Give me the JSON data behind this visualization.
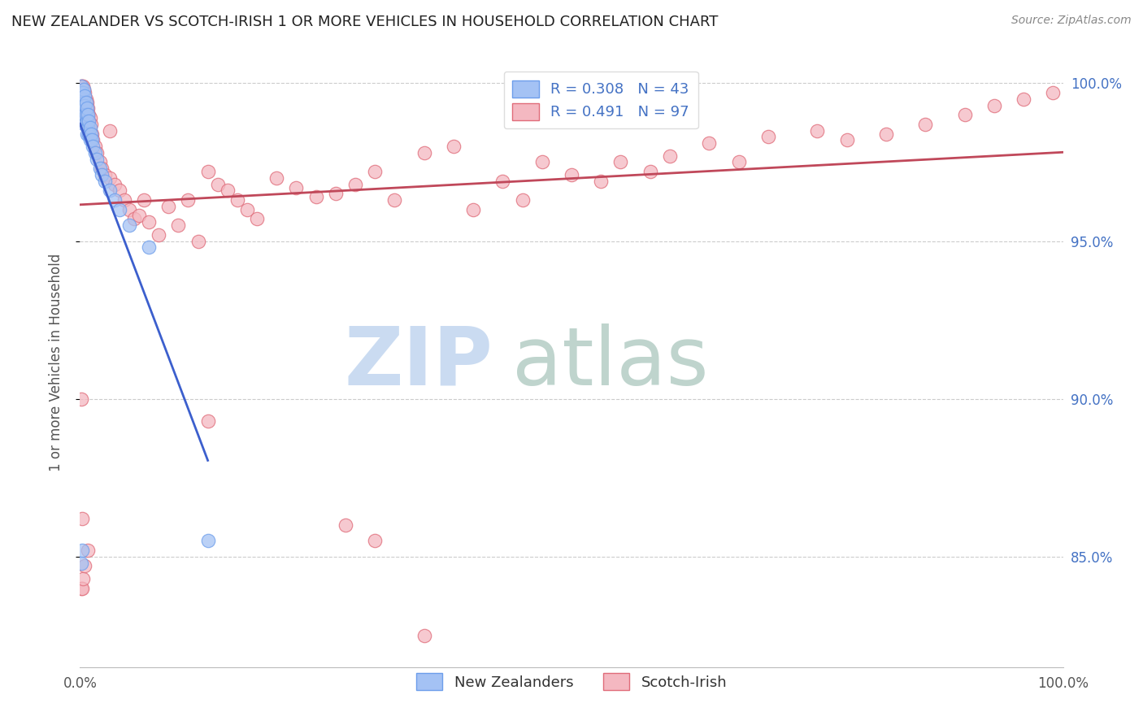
{
  "title": "NEW ZEALANDER VS SCOTCH-IRISH 1 OR MORE VEHICLES IN HOUSEHOLD CORRELATION CHART",
  "source_text": "Source: ZipAtlas.com",
  "ylabel": "1 or more Vehicles in Household",
  "legend_labels": [
    "New Zealanders",
    "Scotch-Irish"
  ],
  "nz_R": 0.308,
  "nz_N": 43,
  "si_R": 0.491,
  "si_N": 97,
  "nz_color": "#a4c2f4",
  "si_color": "#f4b8c1",
  "nz_edge_color": "#6d9eeb",
  "si_edge_color": "#e06c7a",
  "nz_line_color": "#3c5fcd",
  "si_line_color": "#c0485a",
  "background_color": "#ffffff",
  "watermark_zip": "ZIP",
  "watermark_atlas": "atlas",
  "watermark_color_zip": "#c5d8f0",
  "watermark_color_atlas": "#b8d0c8",
  "xmin": 0.0,
  "xmax": 1.0,
  "ymin": 0.815,
  "ymax": 1.008,
  "ytick_values": [
    0.85,
    0.9,
    0.95,
    1.0
  ],
  "ytick_labels": [
    "85.0%",
    "90.0%",
    "95.0%",
    "100.0%"
  ],
  "title_fontsize": 13,
  "label_fontsize": 12,
  "tick_fontsize": 12,
  "nz_x": [
    0.001,
    0.001,
    0.002,
    0.002,
    0.002,
    0.003,
    0.003,
    0.003,
    0.004,
    0.004,
    0.004,
    0.005,
    0.005,
    0.005,
    0.005,
    0.006,
    0.006,
    0.006,
    0.007,
    0.007,
    0.007,
    0.008,
    0.008,
    0.009,
    0.009,
    0.01,
    0.01,
    0.011,
    0.012,
    0.013,
    0.015,
    0.017,
    0.02,
    0.022,
    0.025,
    0.03,
    0.035,
    0.04,
    0.05,
    0.07,
    0.001,
    0.002,
    0.13
  ],
  "nz_y": [
    0.999,
    0.997,
    0.997,
    0.995,
    0.993,
    0.997,
    0.995,
    0.993,
    0.998,
    0.994,
    0.99,
    0.996,
    0.993,
    0.99,
    0.987,
    0.994,
    0.99,
    0.987,
    0.992,
    0.988,
    0.984,
    0.99,
    0.986,
    0.988,
    0.984,
    0.986,
    0.982,
    0.984,
    0.982,
    0.98,
    0.978,
    0.976,
    0.973,
    0.971,
    0.969,
    0.966,
    0.963,
    0.96,
    0.955,
    0.948,
    0.848,
    0.852,
    0.855
  ],
  "si_x": [
    0.001,
    0.001,
    0.001,
    0.002,
    0.002,
    0.002,
    0.002,
    0.003,
    0.003,
    0.003,
    0.003,
    0.004,
    0.004,
    0.004,
    0.005,
    0.005,
    0.005,
    0.006,
    0.006,
    0.007,
    0.007,
    0.007,
    0.008,
    0.008,
    0.009,
    0.009,
    0.01,
    0.01,
    0.011,
    0.012,
    0.013,
    0.015,
    0.017,
    0.02,
    0.022,
    0.025,
    0.03,
    0.03,
    0.035,
    0.04,
    0.045,
    0.05,
    0.055,
    0.06,
    0.065,
    0.07,
    0.08,
    0.09,
    0.1,
    0.11,
    0.12,
    0.13,
    0.14,
    0.15,
    0.16,
    0.17,
    0.18,
    0.2,
    0.22,
    0.24,
    0.26,
    0.28,
    0.3,
    0.32,
    0.35,
    0.38,
    0.4,
    0.43,
    0.45,
    0.47,
    0.5,
    0.53,
    0.55,
    0.58,
    0.6,
    0.64,
    0.67,
    0.7,
    0.75,
    0.78,
    0.82,
    0.86,
    0.9,
    0.93,
    0.96,
    0.99,
    0.001,
    0.002,
    0.003,
    0.005,
    0.008,
    0.35,
    0.002,
    0.001,
    0.3,
    0.27,
    0.13
  ],
  "si_y": [
    0.999,
    0.997,
    0.995,
    0.999,
    0.997,
    0.995,
    0.993,
    0.999,
    0.997,
    0.995,
    0.993,
    0.998,
    0.995,
    0.992,
    0.997,
    0.994,
    0.991,
    0.995,
    0.992,
    0.994,
    0.991,
    0.988,
    0.992,
    0.989,
    0.99,
    0.987,
    0.989,
    0.985,
    0.987,
    0.984,
    0.982,
    0.98,
    0.978,
    0.975,
    0.973,
    0.971,
    0.985,
    0.97,
    0.968,
    0.966,
    0.963,
    0.96,
    0.957,
    0.958,
    0.963,
    0.956,
    0.952,
    0.961,
    0.955,
    0.963,
    0.95,
    0.972,
    0.968,
    0.966,
    0.963,
    0.96,
    0.957,
    0.97,
    0.967,
    0.964,
    0.965,
    0.968,
    0.972,
    0.963,
    0.978,
    0.98,
    0.96,
    0.969,
    0.963,
    0.975,
    0.971,
    0.969,
    0.975,
    0.972,
    0.977,
    0.981,
    0.975,
    0.983,
    0.985,
    0.982,
    0.984,
    0.987,
    0.99,
    0.993,
    0.995,
    0.997,
    0.84,
    0.84,
    0.843,
    0.847,
    0.852,
    0.825,
    0.862,
    0.9,
    0.855,
    0.86,
    0.893
  ]
}
